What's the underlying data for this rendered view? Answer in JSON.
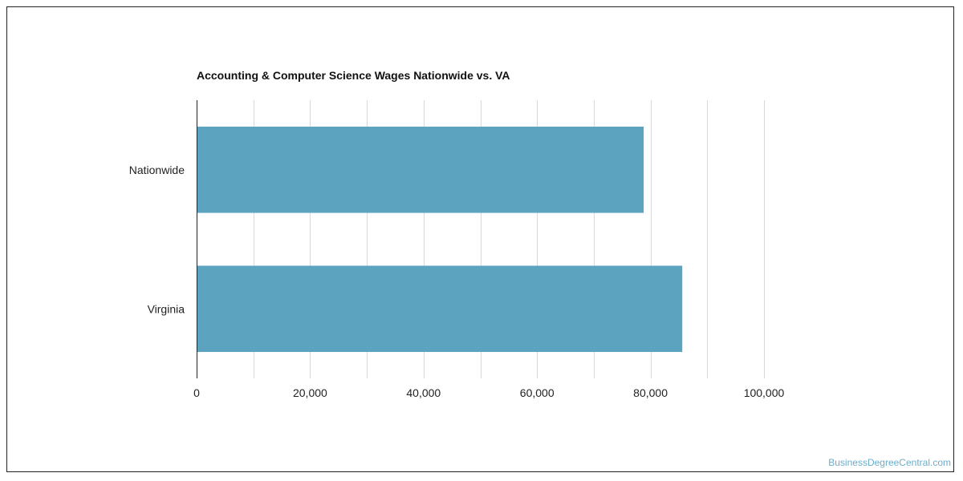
{
  "chart_data": {
    "type": "bar",
    "orientation": "horizontal",
    "title": "Accounting & Computer Science Wages Nationwide vs. VA",
    "categories": [
      "Nationwide",
      "Virginia"
    ],
    "values": [
      78800,
      85600
    ],
    "xlim": [
      0,
      100000
    ],
    "xticks": [
      {
        "value": 0,
        "label": "0"
      },
      {
        "value": 20000,
        "label": "20,000"
      },
      {
        "value": 40000,
        "label": "40,000"
      },
      {
        "value": 60000,
        "label": "60,000"
      },
      {
        "value": 80000,
        "label": "80,000"
      },
      {
        "value": 100000,
        "label": "100,000"
      }
    ],
    "minor_grid_step": 10000,
    "grid": true,
    "legend": false,
    "bar_color": "#5ba3bf",
    "grid_color": "#d9d9d9",
    "axis_color": "#222222"
  },
  "watermark": "BusinessDegreeCentral.com"
}
